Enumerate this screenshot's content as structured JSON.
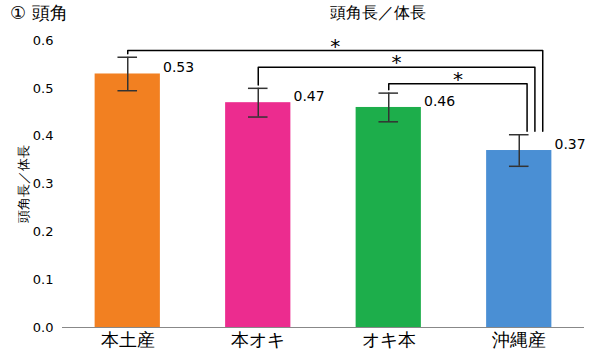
{
  "chart_data": {
    "type": "bar",
    "title": "① 頭角",
    "subtitle": "頭角長／体長",
    "y_label": "頭角長／体長",
    "categories": [
      "本土産",
      "本オキ",
      "オキ本",
      "沖縄産"
    ],
    "values": [
      0.53,
      0.47,
      0.46,
      0.37
    ],
    "errors": [
      0.035,
      0.03,
      0.03,
      0.033
    ],
    "colors": [
      "#F28021",
      "#EC2C8F",
      "#1DAE4B",
      "#4A8FD4"
    ],
    "ylim": [
      0,
      0.6
    ],
    "yticks": [
      {
        "value": 0,
        "label": "0.0"
      },
      0.1,
      0.2,
      0.3,
      0.4,
      0.5,
      0.6
    ],
    "data_labels": true,
    "significance": [
      {
        "from": "本土産",
        "to": "沖縄産",
        "label": "*"
      },
      {
        "from": "本オキ",
        "to": "沖縄産",
        "label": "*"
      },
      {
        "from": "オキ本",
        "to": "沖縄産",
        "label": "*"
      }
    ]
  }
}
